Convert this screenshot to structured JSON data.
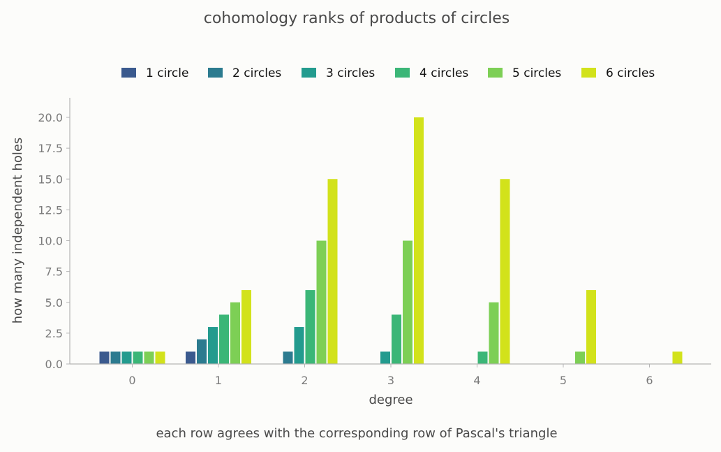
{
  "chart_data": {
    "type": "bar",
    "title": "cohomology ranks of products of circles",
    "xlabel": "degree",
    "ylabel": "how many independent holes",
    "caption": "each row agrees with the corresponding row of Pascal's triangle",
    "categories": [
      "0",
      "1",
      "2",
      "3",
      "4",
      "5",
      "6"
    ],
    "ylim": [
      0,
      21.7
    ],
    "yticks": [
      "0.0",
      "2.5",
      "5.0",
      "7.5",
      "10.0",
      "12.5",
      "15.0",
      "17.5",
      "20.0"
    ],
    "grid": false,
    "legend_position": "top-center",
    "series": [
      {
        "name": "1 circle",
        "color": "#3b5a8e",
        "values": [
          1,
          1,
          0,
          0,
          0,
          0,
          0
        ]
      },
      {
        "name": "2 circles",
        "color": "#2c7b8f",
        "values": [
          1,
          2,
          1,
          0,
          0,
          0,
          0
        ]
      },
      {
        "name": "3 circles",
        "color": "#239b8e",
        "values": [
          1,
          3,
          3,
          1,
          0,
          0,
          0
        ]
      },
      {
        "name": "4 circles",
        "color": "#3bb677",
        "values": [
          1,
          4,
          6,
          4,
          1,
          0,
          0
        ]
      },
      {
        "name": "5 circles",
        "color": "#7dcf55",
        "values": [
          1,
          5,
          10,
          10,
          5,
          1,
          0
        ]
      },
      {
        "name": "6 circles",
        "color": "#d2e21b",
        "values": [
          1,
          6,
          15,
          20,
          15,
          6,
          1
        ]
      }
    ]
  }
}
